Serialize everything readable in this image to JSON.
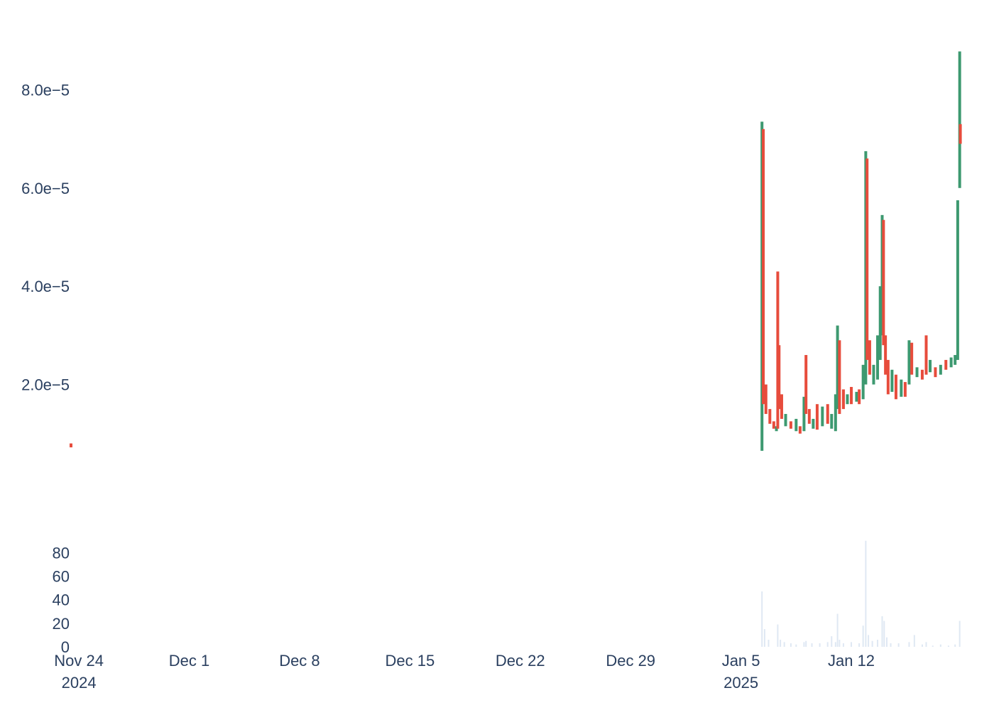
{
  "chart_data": {
    "type": "candlestick",
    "colors": {
      "increasing": "#3d9970",
      "decreasing": "#e74c3c",
      "volume": "#dfe8f3",
      "tick_text": "#2a3f5f"
    },
    "price_axis": {
      "ticks": [
        2e-05,
        4e-05,
        6e-05,
        8e-05
      ],
      "tick_labels": [
        "2.0e−5",
        "4.0e−5",
        "6.0e−5",
        "8.0e−5"
      ],
      "range": [
        6.2e-06,
        8.96e-05
      ],
      "grid": false
    },
    "volume_axis": {
      "ticks": [
        0,
        20,
        40,
        60,
        80
      ],
      "tick_labels": [
        "0",
        "20",
        "40",
        "60",
        "80"
      ],
      "range": [
        0,
        91
      ],
      "grid": false
    },
    "time_axis": {
      "range": [
        "2024-11-23T12:00",
        "2025-01-19T06:00"
      ],
      "ticks": [
        {
          "date": "2024-11-24",
          "label": "Nov 24",
          "sublabel": "2024"
        },
        {
          "date": "2024-12-01",
          "label": "Dec 1",
          "sublabel": ""
        },
        {
          "date": "2024-12-08",
          "label": "Dec 8",
          "sublabel": ""
        },
        {
          "date": "2024-12-15",
          "label": "Dec 15",
          "sublabel": ""
        },
        {
          "date": "2024-12-22",
          "label": "Dec 22",
          "sublabel": ""
        },
        {
          "date": "2024-12-29",
          "label": "Dec 29",
          "sublabel": ""
        },
        {
          "date": "2025-01-05",
          "label": "Jan 5",
          "sublabel": "2025"
        },
        {
          "date": "2025-01-12",
          "label": "Jan 12",
          "sublabel": ""
        }
      ]
    },
    "price_series": [
      {
        "t": "2024-11-23T12:00",
        "low": 7.2e-06,
        "high": 8e-06,
        "dir": "down"
      },
      {
        "t": "2025-01-06T08:00",
        "low": 6.5e-06,
        "high": 7.35e-05,
        "dir": "up"
      },
      {
        "t": "2025-01-06T10:00",
        "low": 1.6e-05,
        "high": 7.2e-05,
        "dir": "down"
      },
      {
        "t": "2025-01-06T14:00",
        "low": 1.4e-05,
        "high": 2e-05,
        "dir": "down"
      },
      {
        "t": "2025-01-06T20:00",
        "low": 1.2e-05,
        "high": 1.5e-05,
        "dir": "down"
      },
      {
        "t": "2025-01-07T02:00",
        "low": 1.1e-05,
        "high": 1.25e-05,
        "dir": "down"
      },
      {
        "t": "2025-01-07T06:00",
        "low": 1.05e-05,
        "high": 1.15e-05,
        "dir": "up"
      },
      {
        "t": "2025-01-07T08:00",
        "low": 1.1e-05,
        "high": 4.3e-05,
        "dir": "down"
      },
      {
        "t": "2025-01-07T10:00",
        "low": 1.5e-05,
        "high": 2.8e-05,
        "dir": "down"
      },
      {
        "t": "2025-01-07T14:00",
        "low": 1.3e-05,
        "high": 1.8e-05,
        "dir": "down"
      },
      {
        "t": "2025-01-07T20:00",
        "low": 1.15e-05,
        "high": 1.4e-05,
        "dir": "up"
      },
      {
        "t": "2025-01-08T04:00",
        "low": 1.1e-05,
        "high": 1.25e-05,
        "dir": "down"
      },
      {
        "t": "2025-01-08T12:00",
        "low": 1.05e-05,
        "high": 1.3e-05,
        "dir": "up"
      },
      {
        "t": "2025-01-08T18:00",
        "low": 1e-05,
        "high": 1.15e-05,
        "dir": "down"
      },
      {
        "t": "2025-01-09T00:00",
        "low": 1.05e-05,
        "high": 1.75e-05,
        "dir": "up"
      },
      {
        "t": "2025-01-09T03:00",
        "low": 1.4e-05,
        "high": 2.6e-05,
        "dir": "down"
      },
      {
        "t": "2025-01-09T08:00",
        "low": 1.2e-05,
        "high": 1.5e-05,
        "dir": "down"
      },
      {
        "t": "2025-01-09T14:00",
        "low": 1.1e-05,
        "high": 1.3e-05,
        "dir": "up"
      },
      {
        "t": "2025-01-09T20:00",
        "low": 1.08e-05,
        "high": 1.6e-05,
        "dir": "down"
      },
      {
        "t": "2025-01-10T04:00",
        "low": 1.15e-05,
        "high": 1.55e-05,
        "dir": "up"
      },
      {
        "t": "2025-01-10T12:00",
        "low": 1.2e-05,
        "high": 1.6e-05,
        "dir": "down"
      },
      {
        "t": "2025-01-10T18:00",
        "low": 1.1e-05,
        "high": 1.4e-05,
        "dir": "up"
      },
      {
        "t": "2025-01-11T00:00",
        "low": 1.05e-05,
        "high": 1.8e-05,
        "dir": "up"
      },
      {
        "t": "2025-01-11T03:00",
        "low": 1.5e-05,
        "high": 3.2e-05,
        "dir": "up"
      },
      {
        "t": "2025-01-11T06:00",
        "low": 1.4e-05,
        "high": 2.9e-05,
        "dir": "down"
      },
      {
        "t": "2025-01-11T12:00",
        "low": 1.5e-05,
        "high": 1.9e-05,
        "dir": "down"
      },
      {
        "t": "2025-01-11T18:00",
        "low": 1.6e-05,
        "high": 1.8e-05,
        "dir": "up"
      },
      {
        "t": "2025-01-12T00:00",
        "low": 1.6e-05,
        "high": 1.95e-05,
        "dir": "down"
      },
      {
        "t": "2025-01-12T08:00",
        "low": 1.65e-05,
        "high": 1.85e-05,
        "dir": "up"
      },
      {
        "t": "2025-01-12T12:00",
        "low": 1.6e-05,
        "high": 1.9e-05,
        "dir": "down"
      },
      {
        "t": "2025-01-12T18:00",
        "low": 1.7e-05,
        "high": 2.4e-05,
        "dir": "up"
      },
      {
        "t": "2025-01-12T22:00",
        "low": 2e-05,
        "high": 6.75e-05,
        "dir": "up"
      },
      {
        "t": "2025-01-13T00:00",
        "low": 2.5e-05,
        "high": 6.6e-05,
        "dir": "down"
      },
      {
        "t": "2025-01-13T04:00",
        "low": 2.2e-05,
        "high": 2.9e-05,
        "dir": "down"
      },
      {
        "t": "2025-01-13T10:00",
        "low": 2e-05,
        "high": 2.4e-05,
        "dir": "up"
      },
      {
        "t": "2025-01-13T16:00",
        "low": 2.1e-05,
        "high": 3e-05,
        "dir": "up"
      },
      {
        "t": "2025-01-13T20:00",
        "low": 2.5e-05,
        "high": 4e-05,
        "dir": "up"
      },
      {
        "t": "2025-01-13T23:00",
        "low": 3e-05,
        "high": 5.45e-05,
        "dir": "up"
      },
      {
        "t": "2025-01-14T01:00",
        "low": 2.8e-05,
        "high": 5.35e-05,
        "dir": "down"
      },
      {
        "t": "2025-01-14T04:00",
        "low": 2.2e-05,
        "high": 3e-05,
        "dir": "down"
      },
      {
        "t": "2025-01-14T08:00",
        "low": 1.8e-05,
        "high": 2.5e-05,
        "dir": "down"
      },
      {
        "t": "2025-01-14T14:00",
        "low": 1.85e-05,
        "high": 2.3e-05,
        "dir": "up"
      },
      {
        "t": "2025-01-14T20:00",
        "low": 1.7e-05,
        "high": 2.2e-05,
        "dir": "down"
      },
      {
        "t": "2025-01-15T04:00",
        "low": 1.75e-05,
        "high": 2.1e-05,
        "dir": "up"
      },
      {
        "t": "2025-01-15T10:00",
        "low": 1.75e-05,
        "high": 2.05e-05,
        "dir": "down"
      },
      {
        "t": "2025-01-15T16:00",
        "low": 2e-05,
        "high": 2.9e-05,
        "dir": "up"
      },
      {
        "t": "2025-01-15T20:00",
        "low": 2.2e-05,
        "high": 2.85e-05,
        "dir": "down"
      },
      {
        "t": "2025-01-16T04:00",
        "low": 2.15e-05,
        "high": 2.35e-05,
        "dir": "up"
      },
      {
        "t": "2025-01-16T12:00",
        "low": 2.1e-05,
        "high": 2.3e-05,
        "dir": "down"
      },
      {
        "t": "2025-01-16T18:00",
        "low": 2.2e-05,
        "high": 3e-05,
        "dir": "down"
      },
      {
        "t": "2025-01-17T00:00",
        "low": 2.25e-05,
        "high": 2.5e-05,
        "dir": "up"
      },
      {
        "t": "2025-01-17T08:00",
        "low": 2.15e-05,
        "high": 2.35e-05,
        "dir": "down"
      },
      {
        "t": "2025-01-17T16:00",
        "low": 2.2e-05,
        "high": 2.4e-05,
        "dir": "up"
      },
      {
        "t": "2025-01-18T00:00",
        "low": 2.3e-05,
        "high": 2.5e-05,
        "dir": "down"
      },
      {
        "t": "2025-01-18T08:00",
        "low": 2.35e-05,
        "high": 2.55e-05,
        "dir": "up"
      },
      {
        "t": "2025-01-18T14:00",
        "low": 2.4e-05,
        "high": 2.6e-05,
        "dir": "up"
      },
      {
        "t": "2025-01-18T18:00",
        "low": 2.5e-05,
        "high": 5.75e-05,
        "dir": "up"
      },
      {
        "t": "2025-01-18T21:00",
        "low": 6e-05,
        "high": 8.78e-05,
        "dir": "up"
      },
      {
        "t": "2025-01-18T22:00",
        "low": 6.9e-05,
        "high": 7.3e-05,
        "dir": "down"
      }
    ],
    "volume_series": [
      {
        "t": "2025-01-06T08:00",
        "v": 47
      },
      {
        "t": "2025-01-06T12:00",
        "v": 15
      },
      {
        "t": "2025-01-06T18:00",
        "v": 6
      },
      {
        "t": "2025-01-07T08:00",
        "v": 19
      },
      {
        "t": "2025-01-07T12:00",
        "v": 6
      },
      {
        "t": "2025-01-07T18:00",
        "v": 4
      },
      {
        "t": "2025-01-08T04:00",
        "v": 3
      },
      {
        "t": "2025-01-08T12:00",
        "v": 2
      },
      {
        "t": "2025-01-09T00:00",
        "v": 4
      },
      {
        "t": "2025-01-09T03:00",
        "v": 5
      },
      {
        "t": "2025-01-09T12:00",
        "v": 3
      },
      {
        "t": "2025-01-10T00:00",
        "v": 3
      },
      {
        "t": "2025-01-10T12:00",
        "v": 4
      },
      {
        "t": "2025-01-10T18:00",
        "v": 9
      },
      {
        "t": "2025-01-11T00:00",
        "v": 4
      },
      {
        "t": "2025-01-11T03:00",
        "v": 28
      },
      {
        "t": "2025-01-11T06:00",
        "v": 6
      },
      {
        "t": "2025-01-11T12:00",
        "v": 3
      },
      {
        "t": "2025-01-12T00:00",
        "v": 4
      },
      {
        "t": "2025-01-12T12:00",
        "v": 3
      },
      {
        "t": "2025-01-12T18:00",
        "v": 18
      },
      {
        "t": "2025-01-12T22:00",
        "v": 90
      },
      {
        "t": "2025-01-13T02:00",
        "v": 10
      },
      {
        "t": "2025-01-13T08:00",
        "v": 5
      },
      {
        "t": "2025-01-13T16:00",
        "v": 6
      },
      {
        "t": "2025-01-13T23:00",
        "v": 26
      },
      {
        "t": "2025-01-14T02:00",
        "v": 22
      },
      {
        "t": "2025-01-14T06:00",
        "v": 8
      },
      {
        "t": "2025-01-14T12:00",
        "v": 3
      },
      {
        "t": "2025-01-15T00:00",
        "v": 3
      },
      {
        "t": "2025-01-15T16:00",
        "v": 4
      },
      {
        "t": "2025-01-16T00:00",
        "v": 10
      },
      {
        "t": "2025-01-16T12:00",
        "v": 2
      },
      {
        "t": "2025-01-16T18:00",
        "v": 4
      },
      {
        "t": "2025-01-17T04:00",
        "v": 1
      },
      {
        "t": "2025-01-17T16:00",
        "v": 2
      },
      {
        "t": "2025-01-18T04:00",
        "v": 1
      },
      {
        "t": "2025-01-18T14:00",
        "v": 2
      },
      {
        "t": "2025-01-18T21:00",
        "v": 22
      }
    ]
  }
}
